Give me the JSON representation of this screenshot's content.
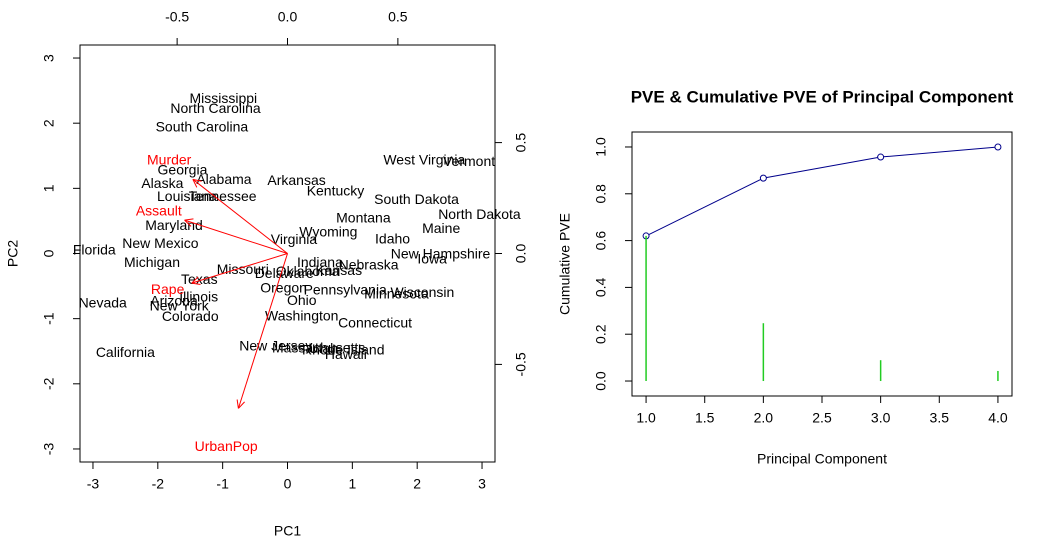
{
  "chart_data": [
    {
      "type": "biplot",
      "xlabel": "PC1",
      "ylabel": "PC2",
      "xlim": [
        -3.2,
        3.2
      ],
      "ylim": [
        -3.2,
        3.2
      ],
      "xticks": [
        -3,
        -2,
        -1,
        0,
        1,
        2,
        3
      ],
      "yticks": [
        -3,
        -2,
        -1,
        0,
        1,
        2,
        3
      ],
      "x2lim": [
        -0.94,
        0.94
      ],
      "y2lim": [
        -0.94,
        0.94
      ],
      "x2ticks": [
        -0.5,
        {
          "value": 0,
          "label": "0.0"
        },
        0.5
      ],
      "y2ticks": [
        -0.5,
        {
          "value": 0,
          "label": "0.0"
        },
        0.5
      ],
      "points": {
        "color": "#000000",
        "labels": [
          "Alabama",
          "Alaska",
          "Arizona",
          "Arkansas",
          "California",
          "Colorado",
          "Connecticut",
          "Delaware",
          "Florida",
          "Georgia",
          "Hawaii",
          "Idaho",
          "Illinois",
          "Indiana",
          "Iowa",
          "Kansas",
          "Kentucky",
          "Louisiana",
          "Maine",
          "Maryland",
          "Massachusetts",
          "Michigan",
          "Minnesota",
          "Mississippi",
          "Missouri",
          "Montana",
          "Nebraska",
          "Nevada",
          "New Hampshire",
          "New Jersey",
          "New Mexico",
          "New York",
          "North Carolina",
          "North Dakota",
          "Ohio",
          "Oklahoma",
          "Oregon",
          "Pennsylvania",
          "Rhode Island",
          "South Carolina",
          "South Dakota",
          "Tennessee",
          "Texas",
          "Utah",
          "Vermont",
          "Virginia",
          "Washington",
          "West Virginia",
          "Wisconsin",
          "Wyoming"
        ],
        "x": [
          -0.98,
          -1.93,
          -1.75,
          0.14,
          -2.5,
          -1.5,
          1.35,
          -0.05,
          -2.98,
          -1.62,
          0.9,
          1.62,
          -1.37,
          0.5,
          2.23,
          0.79,
          0.74,
          -1.55,
          2.37,
          -1.75,
          0.48,
          -2.09,
          1.68,
          -0.99,
          -0.69,
          1.17,
          1.25,
          -2.85,
          2.36,
          -0.18,
          -1.96,
          -1.67,
          -1.11,
          2.96,
          0.22,
          0.31,
          -0.06,
          0.89,
          0.86,
          -1.32,
          1.99,
          -1.0,
          -1.36,
          0.55,
          2.8,
          0.1,
          0.22,
          2.11,
          2.08,
          0.63
        ],
        "y": [
          1.12,
          1.06,
          -0.74,
          1.11,
          -1.53,
          -0.98,
          -1.08,
          -0.32,
          0.04,
          1.27,
          -1.56,
          0.21,
          -0.68,
          -0.15,
          -0.1,
          -0.27,
          0.95,
          0.86,
          0.37,
          0.42,
          -1.46,
          -0.15,
          -0.63,
          2.37,
          -0.26,
          0.53,
          -0.19,
          -0.77,
          -0.02,
          -1.43,
          0.14,
          -0.82,
          2.21,
          0.59,
          -0.73,
          -0.29,
          -0.54,
          -0.57,
          -1.49,
          1.93,
          0.82,
          0.86,
          -0.41,
          -1.47,
          1.4,
          0.2,
          -0.97,
          1.42,
          -0.61,
          0.32
        ]
      },
      "loadings": {
        "color": "#ff0000",
        "variables": [
          "Murder",
          "Assault",
          "UrbanPop",
          "Rape"
        ],
        "x": [
          -0.536,
          -0.583,
          -0.278,
          -0.543
        ],
        "y": [
          0.418,
          0.188,
          -0.873,
          -0.167
        ]
      }
    },
    {
      "type": "line",
      "title": "PVE & Cumulative PVE of Principal Component",
      "xlabel": "Principal Component",
      "ylabel": "Cumulative PVE",
      "x": [
        1,
        2,
        3,
        4
      ],
      "xlim": [
        0.88,
        4.12
      ],
      "ylim": [
        -0.064,
        1.064
      ],
      "xticks": [
        {
          "value": 1,
          "label": "1.0"
        },
        1.5,
        {
          "value": 2,
          "label": "2.0"
        },
        2.5,
        {
          "value": 3,
          "label": "3.0"
        },
        3.5,
        {
          "value": 4,
          "label": "4.0"
        }
      ],
      "yticks": [
        {
          "value": 0,
          "label": "0.0"
        },
        0.2,
        0.4,
        0.6,
        0.8,
        {
          "value": 1,
          "label": "1.0"
        }
      ],
      "series": [
        {
          "style": "line",
          "color": "#00008b",
          "values": [
            0.62,
            0.867,
            0.957,
            1.0
          ]
        },
        {
          "style": "h",
          "color": "#22cc22",
          "values": [
            0.62,
            0.247,
            0.089,
            0.043
          ]
        }
      ]
    }
  ]
}
